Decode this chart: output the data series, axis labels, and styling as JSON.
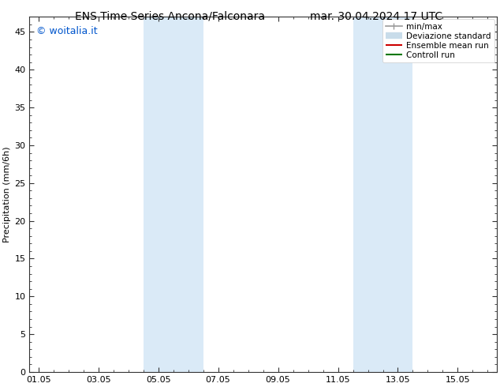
{
  "title_left": "ENS Time Series Ancona/Falconara",
  "title_right": "mar. 30.04.2024 17 UTC",
  "ylabel": "Precipitation (mm/6h)",
  "watermark": "© woitalia.it",
  "watermark_color": "#0055cc",
  "background_color": "#ffffff",
  "plot_bg_color": "#ffffff",
  "ylim": [
    0,
    47
  ],
  "yticks": [
    0,
    5,
    10,
    15,
    20,
    25,
    30,
    35,
    40,
    45
  ],
  "xlim": [
    -0.3,
    15.3
  ],
  "xtick_labels": [
    "01.05",
    "03.05",
    "05.05",
    "07.05",
    "09.05",
    "11.05",
    "13.05",
    "15.05"
  ],
  "xtick_positions": [
    0,
    2,
    4,
    6,
    8,
    10,
    12,
    14
  ],
  "shaded_bands": [
    {
      "xstart": 3.5,
      "xend": 5.5,
      "color": "#daeaf7"
    },
    {
      "xstart": 10.5,
      "xend": 12.5,
      "color": "#daeaf7"
    }
  ],
  "legend_entries": [
    {
      "label": "min/max",
      "color": "#999999",
      "lw": 1.2
    },
    {
      "label": "Deviazione standard",
      "color": "#c8dcea",
      "lw": 6
    },
    {
      "label": "Ensemble mean run",
      "color": "#cc0000",
      "lw": 1.5
    },
    {
      "label": "Controll run",
      "color": "#007700",
      "lw": 1.5
    }
  ],
  "title_fontsize": 10,
  "axis_fontsize": 8,
  "tick_fontsize": 8,
  "watermark_fontsize": 9,
  "legend_fontsize": 7.5
}
